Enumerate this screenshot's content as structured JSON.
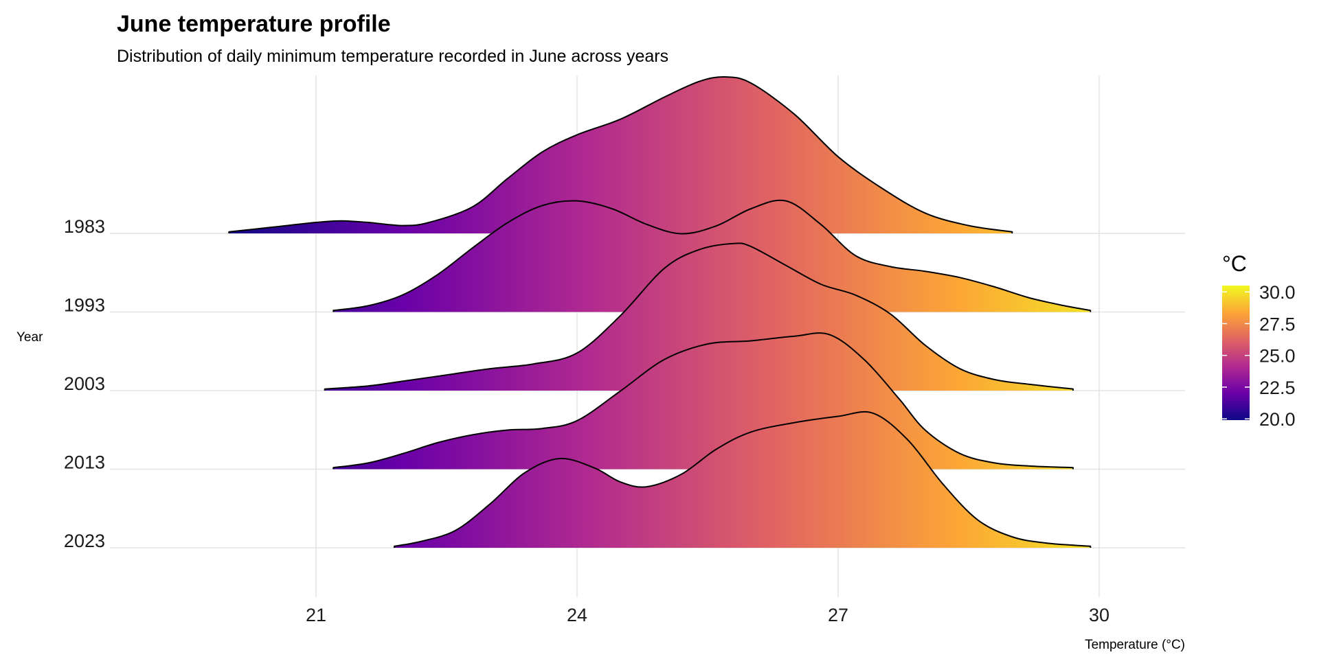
{
  "chart_data": {
    "type": "ridgeline",
    "title": "June temperature profile",
    "subtitle": "Distribution of daily minimum temperature recorded in June across years",
    "xlabel": "Temperature (°C)",
    "ylabel": "Year",
    "xlim": [
      18.7,
      31.0
    ],
    "x_ticks": [
      21,
      24,
      27,
      30
    ],
    "grid": true,
    "legend": {
      "title": "°C",
      "placement": "right",
      "range": [
        19.9,
        30.5
      ],
      "ticks": [
        "20.0",
        "22.5",
        "25.0",
        "27.5",
        "30.0"
      ],
      "tick_values": [
        20.0,
        22.5,
        25.0,
        27.5,
        30.0
      ]
    },
    "colormap": [
      "#0d0887",
      "#6a00a8",
      "#b12a90",
      "#e16462",
      "#fca636",
      "#f0f921"
    ],
    "series": [
      {
        "name": "1983",
        "x": [
          20.0,
          20.5,
          21.0,
          21.3,
          21.6,
          22.0,
          22.3,
          22.8,
          23.2,
          23.6,
          24.0,
          24.5,
          25.0,
          25.4,
          25.7,
          26.0,
          26.5,
          27.0,
          27.5,
          28.0,
          28.5,
          29.0
        ],
        "density": [
          0.01,
          0.04,
          0.07,
          0.08,
          0.07,
          0.05,
          0.07,
          0.17,
          0.35,
          0.52,
          0.63,
          0.73,
          0.87,
          0.97,
          1.0,
          0.96,
          0.76,
          0.49,
          0.29,
          0.13,
          0.05,
          0.01
        ]
      },
      {
        "name": "1993",
        "x": [
          21.2,
          21.6,
          22.0,
          22.4,
          22.8,
          23.2,
          23.6,
          24.0,
          24.4,
          24.8,
          25.2,
          25.6,
          26.0,
          26.4,
          26.8,
          27.2,
          27.6,
          28.0,
          28.4,
          28.8,
          29.2,
          29.6,
          29.9
        ],
        "density": [
          0.01,
          0.04,
          0.11,
          0.24,
          0.41,
          0.57,
          0.68,
          0.71,
          0.66,
          0.56,
          0.5,
          0.55,
          0.66,
          0.71,
          0.56,
          0.36,
          0.29,
          0.26,
          0.22,
          0.16,
          0.09,
          0.04,
          0.01
        ]
      },
      {
        "name": "2003",
        "x": [
          21.1,
          21.6,
          22.0,
          22.5,
          23.0,
          23.5,
          24.0,
          24.5,
          25.0,
          25.4,
          25.8,
          26.0,
          26.4,
          26.8,
          27.2,
          27.6,
          28.0,
          28.4,
          28.8,
          29.2,
          29.7
        ],
        "density": [
          0.01,
          0.03,
          0.06,
          0.1,
          0.14,
          0.17,
          0.24,
          0.48,
          0.78,
          0.9,
          0.94,
          0.92,
          0.8,
          0.68,
          0.61,
          0.49,
          0.29,
          0.14,
          0.07,
          0.04,
          0.01
        ]
      },
      {
        "name": "2013",
        "x": [
          21.2,
          21.6,
          22.0,
          22.4,
          22.8,
          23.2,
          23.6,
          24.0,
          24.5,
          25.0,
          25.5,
          26.0,
          26.5,
          26.9,
          27.3,
          27.7,
          28.0,
          28.4,
          28.8,
          29.2,
          29.7
        ],
        "density": [
          0.01,
          0.04,
          0.1,
          0.17,
          0.22,
          0.25,
          0.26,
          0.31,
          0.5,
          0.7,
          0.8,
          0.82,
          0.85,
          0.86,
          0.7,
          0.45,
          0.25,
          0.1,
          0.04,
          0.02,
          0.01
        ]
      },
      {
        "name": "2023",
        "x": [
          21.9,
          22.2,
          22.6,
          23.0,
          23.4,
          23.8,
          24.2,
          24.5,
          24.8,
          25.2,
          25.6,
          26.0,
          26.5,
          27.0,
          27.4,
          27.8,
          28.2,
          28.6,
          29.0,
          29.4,
          29.9
        ],
        "density": [
          0.01,
          0.04,
          0.11,
          0.28,
          0.48,
          0.57,
          0.51,
          0.42,
          0.39,
          0.47,
          0.63,
          0.74,
          0.8,
          0.84,
          0.86,
          0.69,
          0.41,
          0.18,
          0.07,
          0.03,
          0.01
        ]
      }
    ]
  }
}
